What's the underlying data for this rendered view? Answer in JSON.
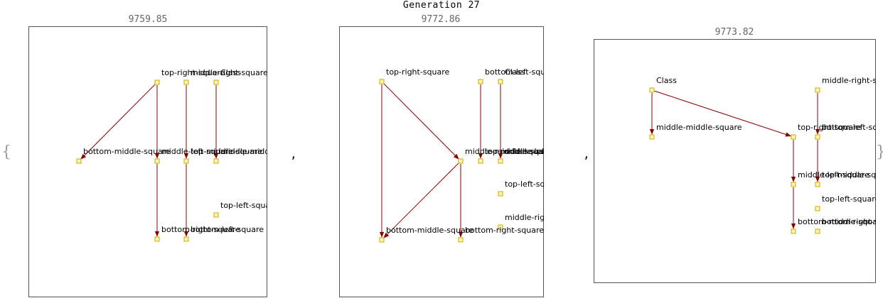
{
  "title": "Generation 27",
  "brace_open": "{",
  "brace_close": "}",
  "separator": ",",
  "colors": {
    "edge": "#8b0000",
    "node_fill": "#fff7b0",
    "node_stroke": "#c8a800",
    "frame": "#555555"
  },
  "panels": [
    {
      "score": "9759.85",
      "nodes": [
        {
          "id": "trs",
          "label": "top-right-square"
        },
        {
          "id": "mrs",
          "label": "middle-right-square"
        },
        {
          "id": "cls",
          "label": "Class"
        },
        {
          "id": "bms",
          "label": "bottom-middle-square"
        },
        {
          "id": "mls",
          "label": "middle-left-square"
        },
        {
          "id": "tms",
          "label": "top-middle-square"
        },
        {
          "id": "mms",
          "label": "middle-middle-square"
        },
        {
          "id": "tls",
          "label": "top-left-square"
        },
        {
          "id": "brs",
          "label": "bottom-right-square"
        },
        {
          "id": "bls",
          "label": "bottom-left-square"
        }
      ],
      "edges": [
        [
          "trs",
          "bms"
        ],
        [
          "trs",
          "mls"
        ],
        [
          "mrs",
          "tms"
        ],
        [
          "cls",
          "mms"
        ],
        [
          "mls",
          "brs"
        ],
        [
          "tms",
          "bls"
        ]
      ]
    },
    {
      "score": "9772.86",
      "nodes": [
        {
          "id": "trs",
          "label": "top-right-square"
        },
        {
          "id": "bls",
          "label": "bottom-left-square"
        },
        {
          "id": "cls",
          "label": "Class"
        },
        {
          "id": "mms",
          "label": "middle-middle-square"
        },
        {
          "id": "tms",
          "label": "top-middle-square"
        },
        {
          "id": "mls",
          "label": "middle-left-square"
        },
        {
          "id": "tls",
          "label": "top-left-square"
        },
        {
          "id": "mrs",
          "label": "middle-right-square"
        },
        {
          "id": "bms",
          "label": "bottom-middle-square"
        },
        {
          "id": "brs",
          "label": "bottom-right-square"
        }
      ],
      "edges": [
        [
          "trs",
          "mms"
        ],
        [
          "trs",
          "bms"
        ],
        [
          "bls",
          "tms"
        ],
        [
          "cls",
          "mls"
        ],
        [
          "mms",
          "bms"
        ],
        [
          "mms",
          "brs"
        ]
      ]
    },
    {
      "score": "9773.82",
      "nodes": [
        {
          "id": "cls",
          "label": "Class"
        },
        {
          "id": "mrs",
          "label": "middle-right-square"
        },
        {
          "id": "mms",
          "label": "middle-middle-square"
        },
        {
          "id": "trs",
          "label": "top-right-square"
        },
        {
          "id": "bls",
          "label": "bottom-left-square"
        },
        {
          "id": "mls",
          "label": "middle-left-square"
        },
        {
          "id": "tms",
          "label": "top-middle-square"
        },
        {
          "id": "tls",
          "label": "top-left-square"
        },
        {
          "id": "bms",
          "label": "bottom-middle-square"
        },
        {
          "id": "brs",
          "label": "bottom-right-square"
        }
      ],
      "edges": [
        [
          "cls",
          "mms"
        ],
        [
          "cls",
          "trs"
        ],
        [
          "mrs",
          "bls"
        ],
        [
          "trs",
          "mls"
        ],
        [
          "bls",
          "tms"
        ],
        [
          "mls",
          "bms"
        ]
      ]
    }
  ]
}
